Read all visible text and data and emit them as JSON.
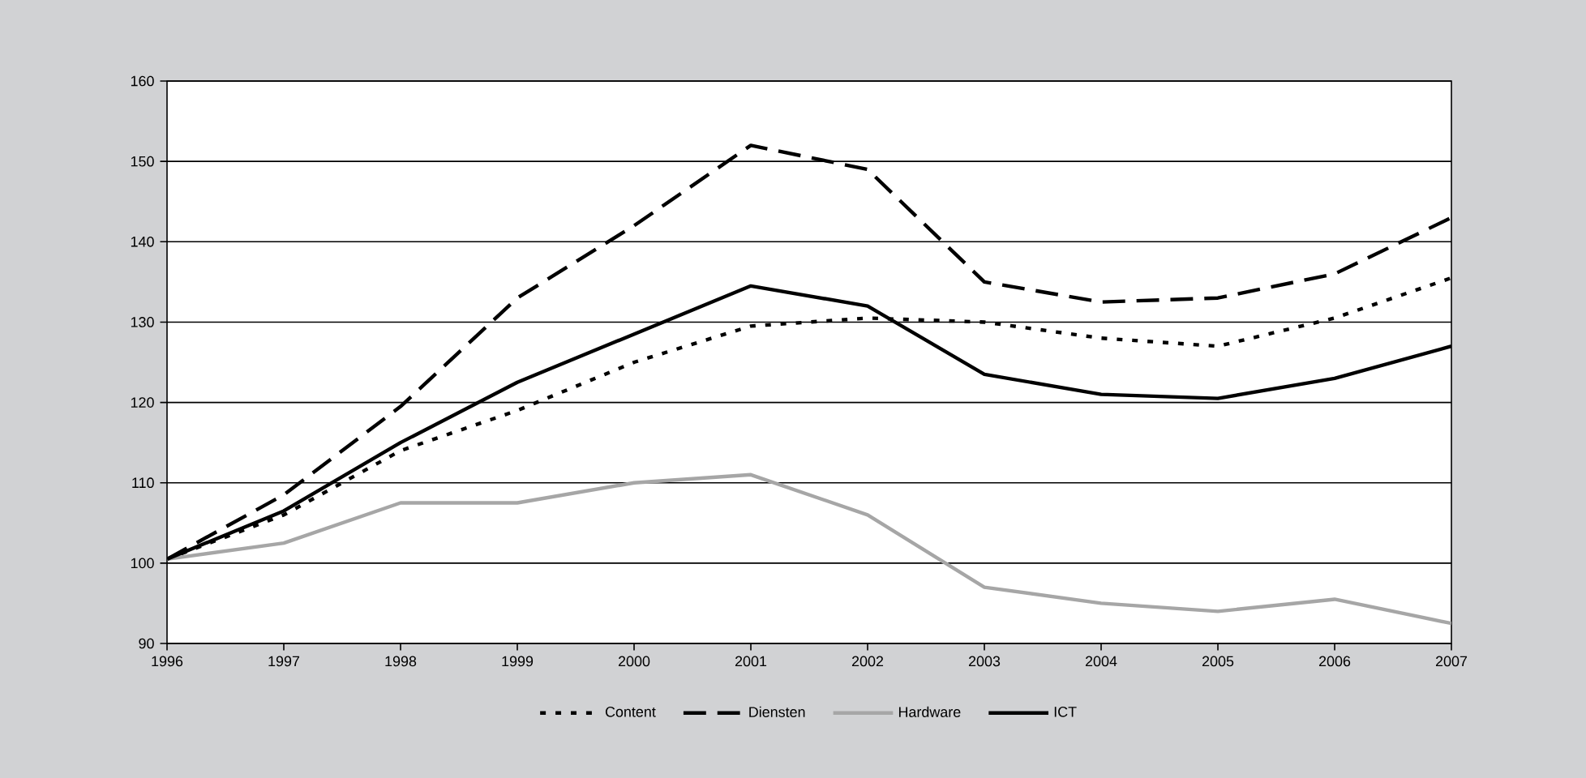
{
  "chart_data": {
    "type": "line",
    "x": [
      1996,
      1997,
      1998,
      1999,
      2000,
      2001,
      2002,
      2003,
      2004,
      2005,
      2006,
      2007
    ],
    "series": [
      {
        "name": "Content",
        "color": "#000000",
        "line_style": "dotted",
        "values": [
          100.5,
          106,
          114,
          119,
          125,
          129.5,
          130.5,
          130,
          128,
          127,
          130.5,
          135.5
        ]
      },
      {
        "name": "Diensten",
        "color": "#000000",
        "line_style": "dashed",
        "values": [
          100.5,
          108.5,
          119.5,
          133,
          142,
          152,
          149,
          135,
          132.5,
          133,
          136,
          143
        ]
      },
      {
        "name": "Hardware",
        "color": "#a6a6a6",
        "line_style": "solid",
        "values": [
          100.5,
          102.5,
          107.5,
          107.5,
          110,
          111,
          106,
          97,
          95,
          94,
          95.5,
          92.5
        ]
      },
      {
        "name": "ICT",
        "color": "#000000",
        "line_style": "solid",
        "values": [
          100.5,
          106.5,
          115,
          122.5,
          128.5,
          134.5,
          132,
          123.5,
          121,
          120.5,
          123,
          127
        ]
      }
    ],
    "xlim": [
      1996,
      2007
    ],
    "xticks": [
      1996,
      1997,
      1998,
      1999,
      2000,
      2001,
      2002,
      2003,
      2004,
      2005,
      2006,
      2007
    ],
    "ylim": [
      90,
      160
    ],
    "yticks": [
      90,
      100,
      110,
      120,
      130,
      140,
      150,
      160
    ],
    "grid": "y",
    "legend": "bottom"
  }
}
